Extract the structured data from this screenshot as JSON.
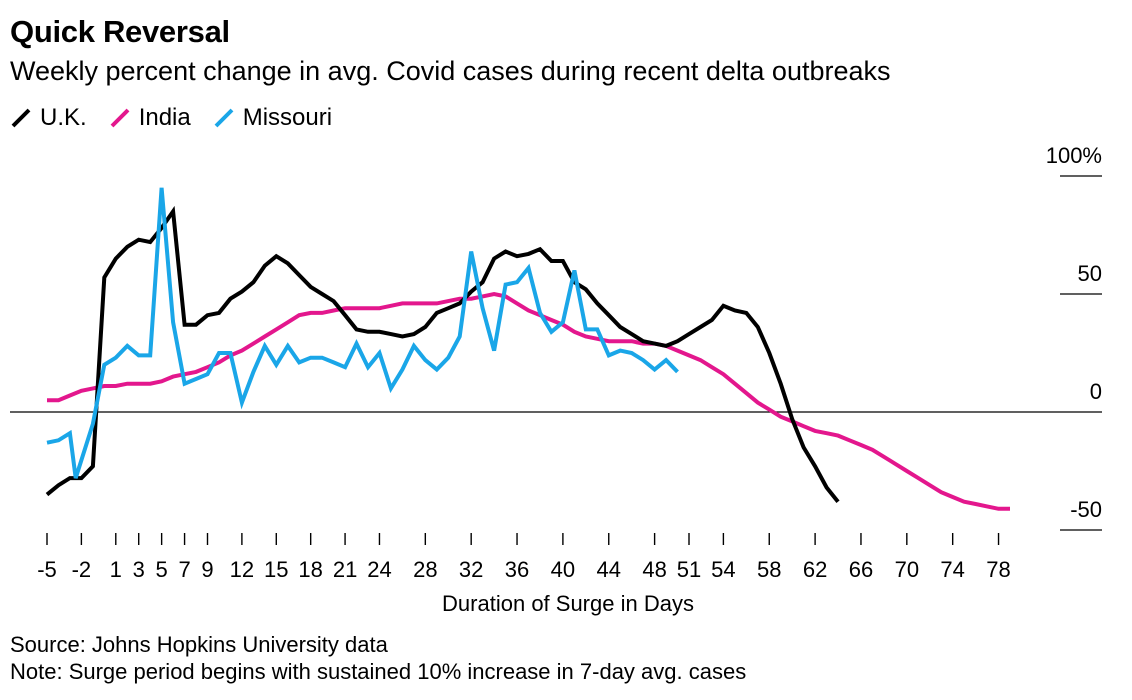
{
  "title": "Quick Reversal",
  "subtitle": "Weekly percent change in avg. Covid cases during recent delta outbreaks",
  "source": "Source: Johns Hopkins University data",
  "note": "Note: Surge period begins with sustained 10% increase in 7-day avg. cases",
  "chart_data": {
    "type": "line",
    "title": "Quick Reversal",
    "subtitle": "Weekly percent change in avg. Covid cases during recent delta outbreaks",
    "xlabel": "Duration of Surge in Days",
    "ylabel": "",
    "xlim": [
      -5,
      79
    ],
    "ylim": [
      -50,
      100
    ],
    "x_ticks": [
      -5,
      -2,
      1,
      3,
      5,
      7,
      9,
      12,
      15,
      18,
      21,
      24,
      28,
      32,
      36,
      40,
      44,
      48,
      51,
      54,
      58,
      62,
      66,
      70,
      74,
      78
    ],
    "y_ticks": [
      {
        "value": 100,
        "label": "100%"
      },
      {
        "value": 50,
        "label": "50"
      },
      {
        "value": 0,
        "label": "0"
      },
      {
        "value": -50,
        "label": "-50"
      }
    ],
    "grid": false,
    "legend_position": "top-left",
    "series": [
      {
        "name": "U.K.",
        "color": "#000000",
        "points": [
          [
            -5,
            -35
          ],
          [
            -4,
            -31
          ],
          [
            -3,
            -28
          ],
          [
            -2,
            -28
          ],
          [
            -1,
            -23
          ],
          [
            0,
            57
          ],
          [
            1,
            65
          ],
          [
            2,
            70
          ],
          [
            3,
            73
          ],
          [
            4,
            72
          ],
          [
            5,
            78
          ],
          [
            6,
            85
          ],
          [
            7,
            37
          ],
          [
            8,
            37
          ],
          [
            9,
            41
          ],
          [
            10,
            42
          ],
          [
            11,
            48
          ],
          [
            12,
            51
          ],
          [
            13,
            55
          ],
          [
            14,
            62
          ],
          [
            15,
            66
          ],
          [
            16,
            63
          ],
          [
            17,
            58
          ],
          [
            18,
            53
          ],
          [
            19,
            50
          ],
          [
            20,
            47
          ],
          [
            21,
            41
          ],
          [
            22,
            35
          ],
          [
            23,
            34
          ],
          [
            24,
            34
          ],
          [
            25,
            33
          ],
          [
            26,
            32
          ],
          [
            27,
            33
          ],
          [
            28,
            36
          ],
          [
            29,
            42
          ],
          [
            30,
            44
          ],
          [
            31,
            46
          ],
          [
            32,
            51
          ],
          [
            33,
            55
          ],
          [
            34,
            65
          ],
          [
            35,
            68
          ],
          [
            36,
            66
          ],
          [
            37,
            67
          ],
          [
            38,
            69
          ],
          [
            39,
            64
          ],
          [
            40,
            64
          ],
          [
            41,
            55
          ],
          [
            42,
            52
          ],
          [
            43,
            46
          ],
          [
            44,
            41
          ],
          [
            45,
            36
          ],
          [
            46,
            33
          ],
          [
            47,
            30
          ],
          [
            48,
            29
          ],
          [
            49,
            28
          ],
          [
            50,
            30
          ],
          [
            51,
            33
          ],
          [
            52,
            36
          ],
          [
            53,
            39
          ],
          [
            54,
            45
          ],
          [
            55,
            43
          ],
          [
            56,
            42
          ],
          [
            57,
            36
          ],
          [
            58,
            25
          ],
          [
            59,
            12
          ],
          [
            60,
            -3
          ],
          [
            61,
            -15
          ],
          [
            62,
            -23
          ],
          [
            63,
            -32
          ],
          [
            64,
            -38
          ]
        ]
      },
      {
        "name": "India",
        "color": "#e3178d",
        "points": [
          [
            -5,
            5
          ],
          [
            -4,
            5
          ],
          [
            -3,
            7
          ],
          [
            -2,
            9
          ],
          [
            -1,
            10
          ],
          [
            0,
            11
          ],
          [
            1,
            11
          ],
          [
            2,
            12
          ],
          [
            3,
            12
          ],
          [
            4,
            12
          ],
          [
            5,
            13
          ],
          [
            6,
            15
          ],
          [
            7,
            16
          ],
          [
            8,
            17
          ],
          [
            9,
            19
          ],
          [
            10,
            21
          ],
          [
            11,
            24
          ],
          [
            12,
            26
          ],
          [
            13,
            29
          ],
          [
            14,
            32
          ],
          [
            15,
            35
          ],
          [
            16,
            38
          ],
          [
            17,
            41
          ],
          [
            18,
            42
          ],
          [
            19,
            42
          ],
          [
            20,
            43
          ],
          [
            21,
            44
          ],
          [
            22,
            44
          ],
          [
            23,
            44
          ],
          [
            24,
            44
          ],
          [
            25,
            45
          ],
          [
            26,
            46
          ],
          [
            27,
            46
          ],
          [
            28,
            46
          ],
          [
            29,
            46
          ],
          [
            30,
            47
          ],
          [
            31,
            48
          ],
          [
            32,
            48
          ],
          [
            33,
            49
          ],
          [
            34,
            50
          ],
          [
            35,
            49
          ],
          [
            36,
            46
          ],
          [
            37,
            43
          ],
          [
            38,
            41
          ],
          [
            39,
            39
          ],
          [
            40,
            37
          ],
          [
            41,
            34
          ],
          [
            42,
            32
          ],
          [
            43,
            31
          ],
          [
            44,
            30
          ],
          [
            45,
            30
          ],
          [
            46,
            30
          ],
          [
            47,
            29
          ],
          [
            48,
            29
          ],
          [
            49,
            28
          ],
          [
            50,
            26
          ],
          [
            51,
            24
          ],
          [
            52,
            22
          ],
          [
            53,
            19
          ],
          [
            54,
            16
          ],
          [
            55,
            12
          ],
          [
            56,
            8
          ],
          [
            57,
            4
          ],
          [
            58,
            1
          ],
          [
            59,
            -2
          ],
          [
            60,
            -4
          ],
          [
            61,
            -6
          ],
          [
            62,
            -8
          ],
          [
            63,
            -9
          ],
          [
            64,
            -10
          ],
          [
            65,
            -12
          ],
          [
            66,
            -14
          ],
          [
            67,
            -16
          ],
          [
            68,
            -19
          ],
          [
            69,
            -22
          ],
          [
            70,
            -25
          ],
          [
            71,
            -28
          ],
          [
            72,
            -31
          ],
          [
            73,
            -34
          ],
          [
            74,
            -36
          ],
          [
            75,
            -38
          ],
          [
            76,
            -39
          ],
          [
            77,
            -40
          ],
          [
            78,
            -41
          ],
          [
            79,
            -41
          ]
        ]
      },
      {
        "name": "Missouri",
        "color": "#1aa6e8",
        "points": [
          [
            -5,
            -13
          ],
          [
            -4,
            -12
          ],
          [
            -3,
            -9
          ],
          [
            -2.5,
            -28
          ],
          [
            -1,
            -5
          ],
          [
            0,
            20
          ],
          [
            1,
            23
          ],
          [
            2,
            28
          ],
          [
            3,
            24
          ],
          [
            4,
            24
          ],
          [
            5,
            95
          ],
          [
            6,
            38
          ],
          [
            7,
            12
          ],
          [
            8,
            14
          ],
          [
            9,
            16
          ],
          [
            10,
            25
          ],
          [
            11,
            25
          ],
          [
            12,
            4
          ],
          [
            13,
            17
          ],
          [
            14,
            28
          ],
          [
            15,
            20
          ],
          [
            16,
            28
          ],
          [
            17,
            21
          ],
          [
            18,
            23
          ],
          [
            19,
            23
          ],
          [
            20,
            21
          ],
          [
            21,
            19
          ],
          [
            22,
            29
          ],
          [
            23,
            19
          ],
          [
            24,
            25
          ],
          [
            25,
            10
          ],
          [
            26,
            18
          ],
          [
            27,
            28
          ],
          [
            28,
            22
          ],
          [
            29,
            18
          ],
          [
            30,
            23
          ],
          [
            31,
            32
          ],
          [
            32,
            68
          ],
          [
            33,
            44
          ],
          [
            34,
            26
          ],
          [
            35,
            54
          ],
          [
            36,
            55
          ],
          [
            37,
            61
          ],
          [
            38,
            42
          ],
          [
            39,
            34
          ],
          [
            40,
            38
          ],
          [
            41,
            60
          ],
          [
            42,
            35
          ],
          [
            43,
            35
          ],
          [
            44,
            24
          ],
          [
            45,
            26
          ],
          [
            46,
            25
          ],
          [
            47,
            22
          ],
          [
            48,
            18
          ],
          [
            49,
            22
          ],
          [
            50,
            17
          ]
        ]
      }
    ]
  }
}
